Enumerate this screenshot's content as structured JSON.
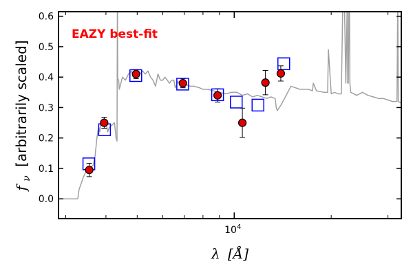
{
  "chart_data": {
    "type": "scatter",
    "title": "",
    "annotation": "EAZY best-fit",
    "annotation_color": "#ff0000",
    "xlabel": "λ [Å]",
    "xlabel_symbol": "λ",
    "xlabel_unit": "[Å]",
    "ylabel": "fν [arbitrarily scaled]",
    "ylabel_symbol": "f",
    "ylabel_subscript": "ν",
    "ylabel_text": "[arbitrarily scaled]",
    "x_scale": "log",
    "xlim": [
      2850,
      33000
    ],
    "ylim": [
      -0.065,
      0.615
    ],
    "y_ticks": [
      0.0,
      0.1,
      0.2,
      0.3,
      0.4,
      0.5,
      0.6
    ],
    "y_tick_labels": [
      "0.0",
      "0.1",
      "0.2",
      "0.3",
      "0.4",
      "0.5",
      "0.6"
    ],
    "x_major_tick": 10000,
    "x_tick_label_base": "10",
    "x_tick_label_exp": "4",
    "x_minor_ticks": [
      3000,
      4000,
      5000,
      6000,
      7000,
      8000,
      9000,
      20000,
      30000
    ],
    "grid": false,
    "colors": {
      "template": "#a0a0a0",
      "model_box": "#0000ff",
      "point_fill": "#e00000",
      "point_edge": "#000000"
    },
    "series": [
      {
        "name": "Observed photometry",
        "marker": "circle",
        "x": [
          3550,
          3950,
          4960,
          6930,
          8880,
          10600,
          12500,
          13950
        ],
        "y": [
          0.095,
          0.25,
          0.41,
          0.38,
          0.34,
          0.25,
          0.382,
          0.412
        ],
        "yerr": [
          0.022,
          0.018,
          0.015,
          0.015,
          0.022,
          0.048,
          0.04,
          0.025
        ]
      },
      {
        "name": "Model photometry",
        "marker": "open-square",
        "x": [
          3540,
          3960,
          4950,
          6920,
          8880,
          10150,
          11850,
          14250
        ],
        "y": [
          0.115,
          0.227,
          0.405,
          0.377,
          0.342,
          0.318,
          0.308,
          0.444
        ]
      },
      {
        "name": "EAZY best-fit template",
        "marker": "line",
        "x": [
          2850,
          3270,
          3300,
          3350,
          3400,
          3450,
          3500,
          3550,
          3600,
          3650,
          3700,
          3750,
          3780,
          3800,
          3830,
          3850,
          3880,
          3900,
          3930,
          3950,
          3980,
          4000,
          4050,
          4100,
          4150,
          4200,
          4250,
          4300,
          4330,
          4340,
          4345,
          4350,
          4380,
          4400,
          4500,
          4600,
          4700,
          4800,
          4860,
          4900,
          5000,
          5100,
          5200,
          5300,
          5400,
          5500,
          5600,
          5700,
          5800,
          5900,
          6000,
          6100,
          6200,
          6300,
          6400,
          6500,
          6562,
          6700,
          6900,
          7100,
          7300,
          7500,
          7800,
          8000,
          8300,
          8600,
          9000,
          9400,
          9800,
          10200,
          10600,
          11000,
          11400,
          11800,
          12200,
          12600,
          13000,
          13400,
          13500,
          13600,
          14000,
          15000,
          16000,
          17000,
          17500,
          17600,
          18000,
          19000,
          19500,
          19600,
          20000,
          20500,
          21000,
          21500,
          21700,
          22000,
          22200,
          22400,
          22450,
          22500,
          22600,
          22700,
          22800,
          22850,
          23000,
          24000,
          25000,
          26000,
          27000,
          28000,
          29000,
          30000,
          31000,
          32000,
          32150,
          32200,
          32300,
          33000
        ],
        "y": [
          0.0,
          0.0,
          0.03,
          0.05,
          0.07,
          0.085,
          0.095,
          0.1,
          0.105,
          0.11,
          0.14,
          0.2,
          0.225,
          0.235,
          0.22,
          0.25,
          0.25,
          0.24,
          0.25,
          0.245,
          0.24,
          0.25,
          0.22,
          0.235,
          0.24,
          0.245,
          0.25,
          0.2,
          0.19,
          0.615,
          0.615,
          0.395,
          0.39,
          0.36,
          0.4,
          0.39,
          0.41,
          0.42,
          0.4,
          0.42,
          0.42,
          0.41,
          0.42,
          0.41,
          0.42,
          0.4,
          0.39,
          0.37,
          0.41,
          0.39,
          0.39,
          0.4,
          0.39,
          0.38,
          0.39,
          0.39,
          0.365,
          0.385,
          0.38,
          0.375,
          0.37,
          0.37,
          0.365,
          0.36,
          0.36,
          0.355,
          0.35,
          0.345,
          0.35,
          0.35,
          0.34,
          0.345,
          0.335,
          0.34,
          0.335,
          0.33,
          0.335,
          0.33,
          0.3,
          0.29,
          0.31,
          0.37,
          0.36,
          0.36,
          0.355,
          0.38,
          0.355,
          0.35,
          0.35,
          0.49,
          0.345,
          0.35,
          0.345,
          0.345,
          0.615,
          0.615,
          0.38,
          0.615,
          0.615,
          0.38,
          0.38,
          0.615,
          0.615,
          0.38,
          0.35,
          0.34,
          0.35,
          0.34,
          0.335,
          0.33,
          0.33,
          0.325,
          0.32,
          0.32,
          0.615,
          0.615,
          0.32,
          0.315
        ]
      }
    ]
  }
}
